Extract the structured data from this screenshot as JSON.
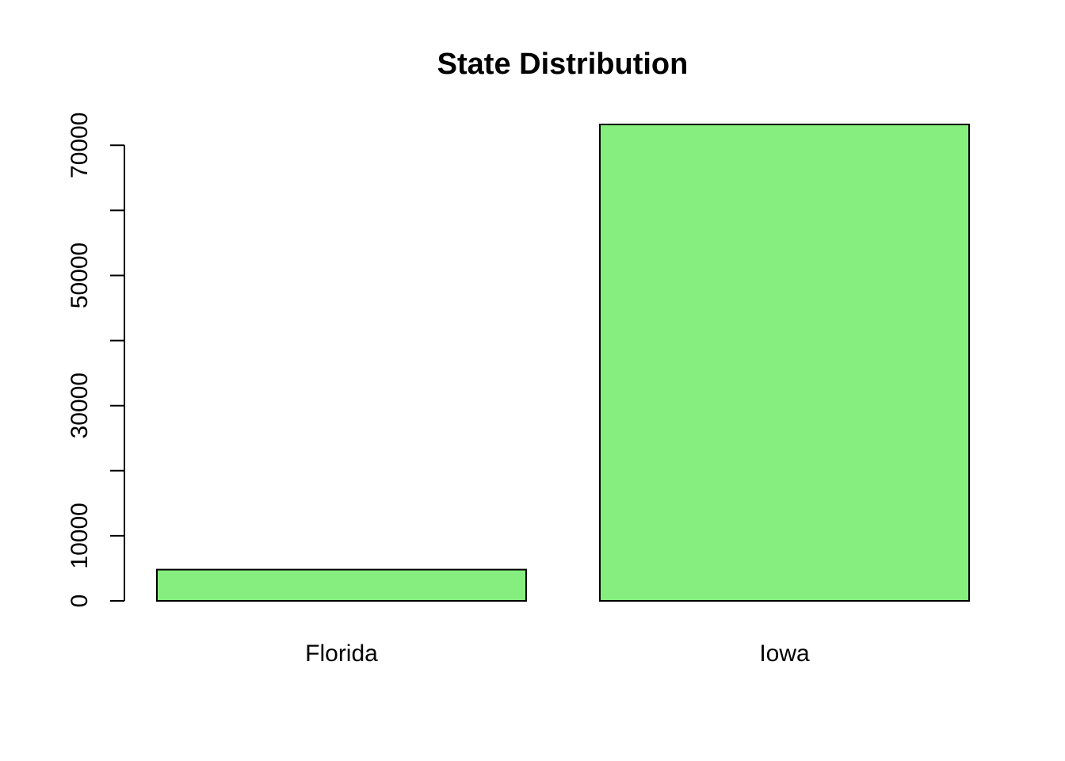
{
  "chart_data": {
    "type": "bar",
    "title": "State Distribution",
    "xlabel": "",
    "ylabel": "",
    "categories": [
      "Florida",
      "Iowa"
    ],
    "values": [
      4800,
      73200
    ],
    "ylim": [
      0,
      73200
    ],
    "y_ticks": [
      0,
      10000,
      20000,
      30000,
      40000,
      50000,
      60000,
      70000
    ],
    "y_tick_labels": [
      {
        "value": 0,
        "label": "0"
      },
      {
        "value": 10000,
        "label": "10000"
      },
      {
        "value": 30000,
        "label": "30000"
      },
      {
        "value": 50000,
        "label": "50000"
      },
      {
        "value": 70000,
        "label": "70000"
      }
    ],
    "bar_color": "#86EE7E",
    "grid": false,
    "legend": "none"
  }
}
